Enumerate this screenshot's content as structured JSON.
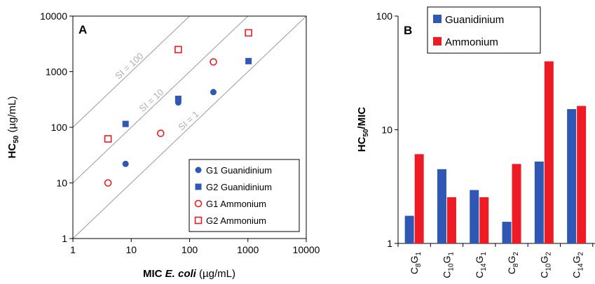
{
  "colors": {
    "guanidinium": "#2e58b4",
    "ammonium": "#ee1b24",
    "si_line": "#9a9a9a"
  },
  "chart_data": [
    {
      "type": "scatter",
      "panel_label": "A",
      "xlabel_prefix": "MIC ",
      "xlabel_italic": "E. coli",
      "xlabel_suffix": " (µg/mL)",
      "ylabel_main": "HC",
      "ylabel_sub": "50",
      "ylabel_suffix": " (µg/mL)",
      "x_scale": "log",
      "y_scale": "log",
      "xlim": [
        1,
        10000
      ],
      "ylim": [
        1,
        10000
      ],
      "x_ticks": [
        "1",
        "10",
        "100",
        "1000",
        "10000"
      ],
      "y_ticks": [
        "1",
        "10",
        "100",
        "1000",
        "10000"
      ],
      "reference_lines": [
        {
          "label": "SI = 100",
          "ratio": 100
        },
        {
          "label": "SI = 10",
          "ratio": 10
        },
        {
          "label": "SI = 1",
          "ratio": 1
        }
      ],
      "legend_position": "bottom-right",
      "series": [
        {
          "name": "G1 Guanidinium",
          "marker": "filled-circle",
          "color": "#2e58b4",
          "points": [
            [
              8,
              22
            ],
            [
              64,
              280
            ],
            [
              256,
              430
            ]
          ]
        },
        {
          "name": "G2 Guanidinium",
          "marker": "filled-square",
          "color": "#2e58b4",
          "points": [
            [
              8,
              115
            ],
            [
              64,
              325
            ],
            [
              1024,
              1550
            ]
          ]
        },
        {
          "name": "G1 Ammonium",
          "marker": "open-circle",
          "color": "#ee1b24",
          "points": [
            [
              4,
              10
            ],
            [
              32,
              78
            ],
            [
              256,
              1500
            ]
          ]
        },
        {
          "name": "G2 Ammonium",
          "marker": "open-square",
          "color": "#ee1b24",
          "points": [
            [
              4,
              62
            ],
            [
              64,
              2500
            ],
            [
              1024,
              5000
            ]
          ]
        }
      ]
    },
    {
      "type": "bar",
      "panel_label": "B",
      "ylabel_main": "HC",
      "ylabel_sub": "50",
      "ylabel_suffix": "/MIC",
      "y_scale": "log",
      "ylim": [
        1,
        100
      ],
      "y_ticks": [
        "1",
        "10",
        "100"
      ],
      "legend_position": "top-left",
      "categories": [
        {
          "c": "C",
          "c_sub": "8",
          "g": "G",
          "g_sub": "1"
        },
        {
          "c": "C",
          "c_sub": "10",
          "g": "G",
          "g_sub": "1"
        },
        {
          "c": "C",
          "c_sub": "14",
          "g": "G",
          "g_sub": "1"
        },
        {
          "c": "C",
          "c_sub": "8",
          "g": "G",
          "g_sub": "2"
        },
        {
          "c": "C",
          "c_sub": "10",
          "g": "G",
          "g_sub": "2"
        },
        {
          "c": "C",
          "c_sub": "14",
          "g": "G",
          "g_sub": "2"
        }
      ],
      "series": [
        {
          "name": "Guanidinium",
          "color": "#2e58b4",
          "values": [
            1.75,
            4.5,
            2.95,
            1.55,
            5.25,
            15.2
          ]
        },
        {
          "name": "Ammonium",
          "color": "#ee1b24",
          "values": [
            6.1,
            2.55,
            2.55,
            5.0,
            40.0,
            16.2
          ]
        }
      ]
    }
  ]
}
